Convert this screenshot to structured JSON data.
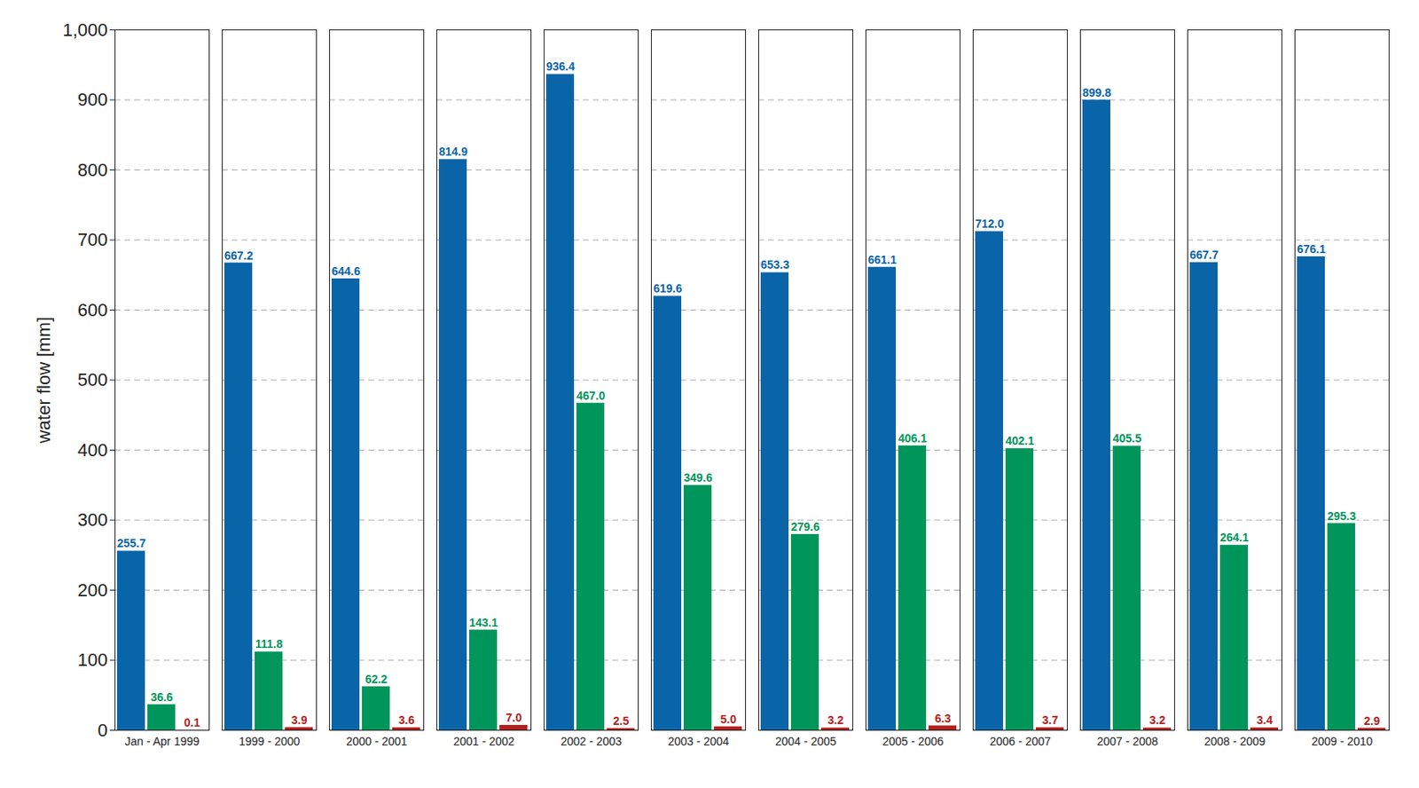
{
  "chart_data": {
    "type": "bar",
    "y_label": "water flow [mm]",
    "categories": [
      "Jan - Apr 1999",
      "1999 - 2000",
      "2000 - 2001",
      "2001 - 2002",
      "2002 - 2003",
      "2003 - 2004",
      "2004 - 2005",
      "2005 - 2006",
      "2006 - 2007",
      "2007 - 2008",
      "2008 - 2009",
      "2009 - 2010"
    ],
    "series": [
      {
        "color": "#0a64a8",
        "values": [
          255.7,
          667.2,
          644.6,
          814.9,
          936.4,
          619.6,
          653.3,
          661.1,
          712.0,
          899.8,
          667.7,
          676.1
        ],
        "value_labels": [
          "255.7",
          "667.2",
          "644.6",
          "814.9",
          "936.4",
          "619.6",
          "653.3",
          "661.1",
          "712.0",
          "899.8",
          "667.7",
          "676.1"
        ]
      },
      {
        "color": "#00955a",
        "values": [
          36.6,
          111.8,
          62.2,
          143.1,
          467.0,
          349.6,
          279.6,
          406.1,
          402.1,
          405.5,
          264.1,
          295.3
        ],
        "value_labels": [
          "36.6",
          "111.8",
          "62.2",
          "143.1",
          "467.0",
          "349.6",
          "279.6",
          "406.1",
          "402.1",
          "405.5",
          "264.1",
          "295.3"
        ]
      },
      {
        "color": "#b3201c",
        "values": [
          0.1,
          3.9,
          3.6,
          7.0,
          2.5,
          5.0,
          3.2,
          6.3,
          3.7,
          3.2,
          3.4,
          2.9
        ],
        "value_labels": [
          "0.1",
          "3.9",
          "3.6",
          "7.0",
          "2.5",
          "5.0",
          "3.2",
          "6.3",
          "3.7",
          "3.2",
          "3.4",
          "2.9"
        ]
      }
    ],
    "ylim": [
      0,
      1000
    ],
    "yticks": [
      0,
      100,
      200,
      300,
      400,
      500,
      600,
      700,
      800,
      900,
      1000
    ],
    "grid": true,
    "data_labels": true
  }
}
